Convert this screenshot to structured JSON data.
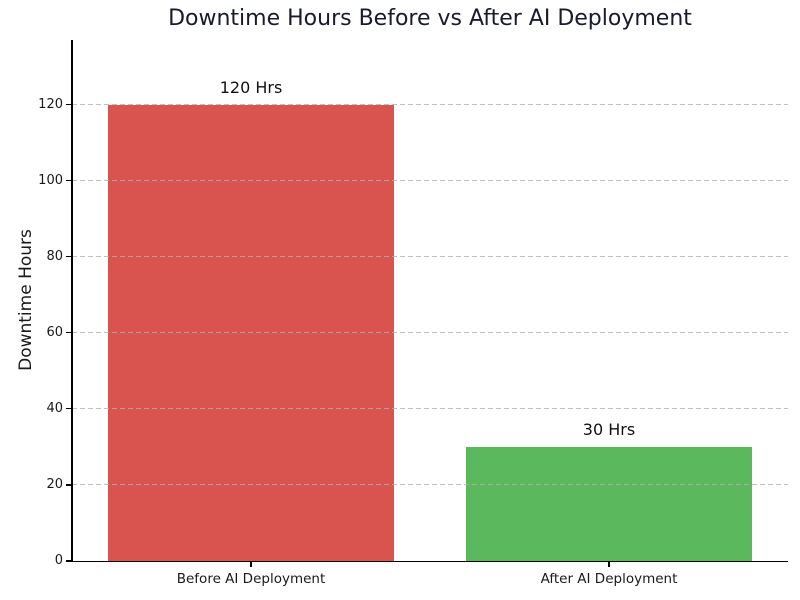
{
  "chart_data": {
    "type": "bar",
    "title": "Downtime Hours Before vs After AI Deployment",
    "categories": [
      "Before AI Deployment",
      "After AI Deployment"
    ],
    "values": [
      120,
      30
    ],
    "bar_labels": [
      "120 Hrs",
      "30 Hrs"
    ],
    "bar_colors": [
      "#d9534f",
      "#5cb85c"
    ],
    "xlabel": "",
    "ylabel": "Downtime Hours",
    "ylim": [
      0,
      137
    ],
    "yticks": [
      0,
      20,
      40,
      60,
      80,
      100,
      120
    ],
    "bar_width_fraction": 0.8,
    "grid": "horizontal-dashed",
    "legend": "none",
    "background": "#ffffff"
  },
  "colors": {
    "title_text": "#1a1a2e",
    "axis_text": "#1a1a1a",
    "spine": "#000000",
    "gridline": "#b0b0b0"
  }
}
